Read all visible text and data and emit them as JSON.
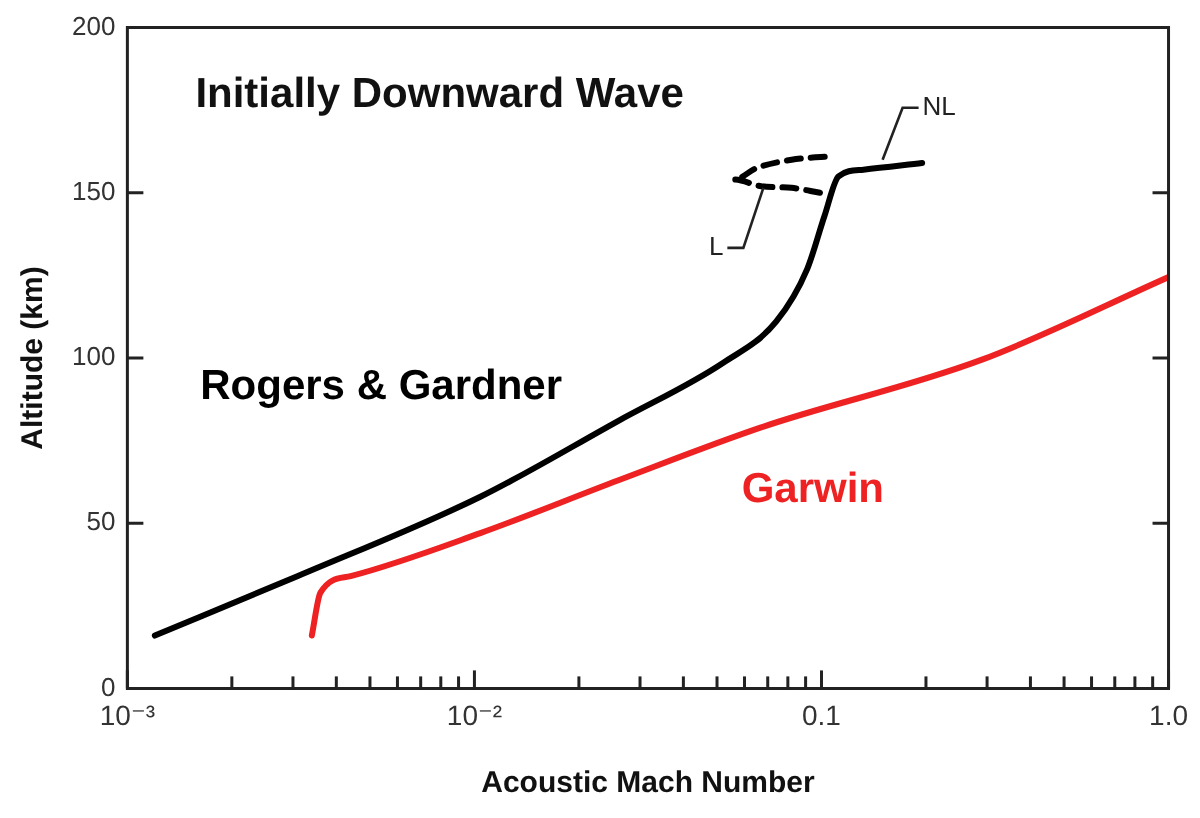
{
  "chart_data": {
    "type": "line",
    "title": "Initially Downward Wave",
    "xlabel": "Acoustic Mach Number",
    "ylabel": "Altitude (km)",
    "log": "x",
    "xlim": [
      0.001,
      1.0
    ],
    "ylim": [
      0,
      200
    ],
    "xticks": [
      {
        "value": 0.001,
        "label": "10⁻³"
      },
      {
        "value": 0.002,
        "label": null
      },
      {
        "value": 0.003,
        "label": null
      },
      {
        "value": 0.004,
        "label": null
      },
      {
        "value": 0.005,
        "label": null
      },
      {
        "value": 0.006,
        "label": null
      },
      {
        "value": 0.007,
        "label": null
      },
      {
        "value": 0.008,
        "label": null
      },
      {
        "value": 0.009,
        "label": null
      },
      {
        "value": 0.01,
        "label": "10⁻²"
      },
      {
        "value": 0.02,
        "label": null
      },
      {
        "value": 0.03,
        "label": null
      },
      {
        "value": 0.04,
        "label": null
      },
      {
        "value": 0.05,
        "label": null
      },
      {
        "value": 0.06,
        "label": null
      },
      {
        "value": 0.07,
        "label": null
      },
      {
        "value": 0.08,
        "label": null
      },
      {
        "value": 0.09,
        "label": null
      },
      {
        "value": 0.1,
        "label": "0.1"
      },
      {
        "value": 0.2,
        "label": null
      },
      {
        "value": 0.3,
        "label": null
      },
      {
        "value": 0.4,
        "label": null
      },
      {
        "value": 0.5,
        "label": null
      },
      {
        "value": 0.6,
        "label": null
      },
      {
        "value": 0.7,
        "label": null
      },
      {
        "value": 0.8,
        "label": null
      },
      {
        "value": 0.9,
        "label": null
      },
      {
        "value": 1.0,
        "label": "1.0"
      }
    ],
    "yticks": [
      0,
      50,
      100,
      150,
      200
    ],
    "grid": false,
    "legend": false,
    "marker": "none",
    "series": [
      {
        "name": "Rogers & Gardner",
        "color": "#000000",
        "line_style": "solid",
        "x": [
          0.0012,
          0.0031,
          0.0104,
          0.026,
          0.052,
          0.074,
          0.091,
          0.102,
          0.112,
          0.132,
          0.195
        ],
        "values": [
          16,
          34,
          58,
          81,
          98.5,
          111,
          127,
          143,
          155,
          157,
          159
        ]
      },
      {
        "color": "#000000",
        "line_style": "dashed",
        "x": [
          0.099,
          0.082,
          0.067,
          0.056,
          0.065,
          0.082,
          0.104
        ],
        "values": [
          150,
          151.5,
          152,
          154,
          157.5,
          160,
          161
        ]
      },
      {
        "name": "Garwin",
        "color": "#ee2222",
        "line_style": "solid",
        "x": [
          0.0034,
          0.0036,
          0.0044,
          0.0104,
          0.026,
          0.067,
          0.29,
          1.0
        ],
        "values": [
          16,
          29,
          34,
          47,
          63,
          79,
          99.5,
          124.5
        ]
      }
    ],
    "annotations": [
      {
        "text": "NL",
        "x": 0.15,
        "y": 160
      },
      {
        "text": "L",
        "x": 0.068,
        "y": 151.5
      }
    ]
  }
}
